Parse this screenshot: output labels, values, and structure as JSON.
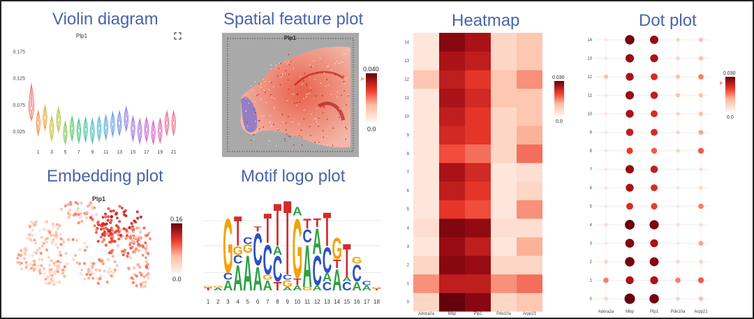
{
  "panels": {
    "violin": {
      "title": "Violin diagram",
      "plot_title": "Plp1",
      "expand_icon": "expand-icon"
    },
    "spatial": {
      "title": "Spatial feature plot",
      "plot_title": "Plp1",
      "scale_max": "0.040",
      "scale_min": "0.0"
    },
    "embedding": {
      "title": "Embedding plot",
      "plot_title": "Plp1",
      "scale_max": "0.16",
      "scale_min": "0.0"
    },
    "motif": {
      "title": "Motif logo plot"
    },
    "heatmap": {
      "title": "Heatmap",
      "scale_max": "0.030",
      "scale_min": "0.0"
    },
    "dotplot": {
      "title": "Dot plot",
      "scale_max": "0.030",
      "scale_min": "0.0"
    }
  },
  "chart_data": [
    {
      "type": "violin",
      "id": "violin",
      "title": "Plp1",
      "y_ticks": [
        "0.175",
        "0.125",
        "0.075",
        "0.025"
      ],
      "y_tick_values": [
        0.175,
        0.125,
        0.075,
        0.025
      ],
      "ylim": [
        0,
        0.19
      ],
      "x_tick_labels": [
        "1",
        "3",
        "5",
        "7",
        "9",
        "11",
        "13",
        "15",
        "17",
        "19",
        "21"
      ],
      "clusters": [
        0,
        1,
        2,
        3,
        4,
        5,
        6,
        7,
        8,
        9,
        10,
        11,
        12,
        13,
        14,
        15,
        16,
        17,
        18,
        19,
        20,
        21
      ],
      "medians": [
        0.068,
        0.04,
        0.05,
        0.03,
        0.046,
        0.02,
        0.03,
        0.026,
        0.028,
        0.025,
        0.03,
        0.032,
        0.038,
        0.04,
        0.048,
        0.03,
        0.025,
        0.028,
        0.022,
        0.026,
        0.04,
        0.04
      ],
      "colors": [
        "#f06a6a",
        "#f08a48",
        "#e6a52e",
        "#cbb82a",
        "#a8c23a",
        "#7cc648",
        "#52c45c",
        "#3ec27a",
        "#36c29c",
        "#38bcb8",
        "#3eb4cc",
        "#48a8dc",
        "#5a98e4",
        "#6e86e8",
        "#8676e6",
        "#9c6ce0",
        "#b064d8",
        "#c25ecc",
        "#d05cbc",
        "#dc5ca8",
        "#e66092",
        "#ee6680"
      ]
    },
    {
      "type": "heatmap",
      "id": "heatmap",
      "x_categories": [
        "Adora2a",
        "Mbp",
        "Plp1",
        "Pde10a",
        "Arpp21"
      ],
      "y_categories": [
        "0",
        "1",
        "2",
        "3",
        "4",
        "5",
        "6",
        "7",
        "8",
        "9",
        "10",
        "11",
        "12",
        "13",
        "14"
      ],
      "values": [
        [
          0.004,
          0.03,
          0.026,
          0.004,
          0.006
        ],
        [
          0.01,
          0.02,
          0.02,
          0.01,
          0.012
        ],
        [
          0.004,
          0.026,
          0.024,
          0.004,
          0.004
        ],
        [
          0.002,
          0.024,
          0.02,
          0.002,
          0.008
        ],
        [
          0.003,
          0.027,
          0.025,
          0.003,
          0.003
        ],
        [
          0.002,
          0.016,
          0.014,
          0.002,
          0.01
        ],
        [
          0.002,
          0.02,
          0.016,
          0.002,
          0.004
        ],
        [
          0.002,
          0.022,
          0.018,
          0.002,
          0.003
        ],
        [
          0.002,
          0.014,
          0.012,
          0.004,
          0.012
        ],
        [
          0.002,
          0.018,
          0.016,
          0.004,
          0.008
        ],
        [
          0.002,
          0.02,
          0.016,
          0.004,
          0.006
        ],
        [
          0.002,
          0.022,
          0.018,
          0.006,
          0.006
        ],
        [
          0.006,
          0.02,
          0.016,
          0.006,
          0.01
        ],
        [
          0.002,
          0.022,
          0.02,
          0.004,
          0.006
        ],
        [
          0.002,
          0.026,
          0.022,
          0.004,
          0.006
        ]
      ],
      "zlim": [
        0,
        0.03
      ]
    },
    {
      "type": "scatter",
      "id": "dotplot",
      "x_categories": [
        "Adora2a",
        "Mbp",
        "Plp1",
        "Pde10a",
        "Arpp21"
      ],
      "y_categories": [
        "0",
        "1",
        "2",
        "3",
        "4",
        "5",
        "6",
        "7",
        "8",
        "9",
        "10",
        "11",
        "12",
        "13",
        "14"
      ],
      "values": [
        [
          0.004,
          0.03,
          0.026,
          0.004,
          0.006
        ],
        [
          0.01,
          0.02,
          0.02,
          0.01,
          0.012
        ],
        [
          0.004,
          0.026,
          0.024,
          0.004,
          0.004
        ],
        [
          0.002,
          0.024,
          0.02,
          0.002,
          0.008
        ],
        [
          0.003,
          0.027,
          0.025,
          0.003,
          0.003
        ],
        [
          0.002,
          0.016,
          0.014,
          0.002,
          0.01
        ],
        [
          0.002,
          0.02,
          0.016,
          0.002,
          0.004
        ],
        [
          0.002,
          0.022,
          0.018,
          0.002,
          0.003
        ],
        [
          0.002,
          0.014,
          0.012,
          0.004,
          0.012
        ],
        [
          0.002,
          0.018,
          0.016,
          0.004,
          0.008
        ],
        [
          0.002,
          0.02,
          0.016,
          0.004,
          0.006
        ],
        [
          0.002,
          0.022,
          0.018,
          0.006,
          0.006
        ],
        [
          0.006,
          0.02,
          0.016,
          0.006,
          0.01
        ],
        [
          0.002,
          0.022,
          0.02,
          0.004,
          0.006
        ],
        [
          0.002,
          0.026,
          0.022,
          0.004,
          0.006
        ]
      ],
      "zlim": [
        0,
        0.03
      ]
    },
    {
      "type": "motif_logo",
      "id": "motif",
      "x_tick_labels": [
        "1",
        "2",
        "3",
        "4",
        "5",
        "6",
        "7",
        "8",
        "9",
        "10",
        "11",
        "12",
        "13",
        "14",
        "15",
        "16",
        "17",
        "18"
      ],
      "positions": [
        [
          {
            "b": "T",
            "h": 0.03
          },
          {
            "b": "G",
            "h": 0.02
          }
        ],
        [
          {
            "b": "A",
            "h": 0.03
          },
          {
            "b": "G",
            "h": 0.02
          }
        ],
        [
          {
            "b": "A",
            "h": 0.12
          },
          {
            "b": "C",
            "h": 0.08
          },
          {
            "b": "G",
            "h": 0.64
          }
        ],
        [
          {
            "b": "A",
            "h": 0.3
          },
          {
            "b": "C",
            "h": 0.1
          },
          {
            "b": "G",
            "h": 0.1
          },
          {
            "b": "T",
            "h": 0.35
          }
        ],
        [
          {
            "b": "A",
            "h": 0.42
          },
          {
            "b": "G",
            "h": 0.1
          },
          {
            "b": "C",
            "h": 0.08
          }
        ],
        [
          {
            "b": "A",
            "h": 0.28
          },
          {
            "b": "C",
            "h": 0.38
          },
          {
            "b": "T",
            "h": 0.06
          }
        ],
        [
          {
            "b": "A",
            "h": 0.12
          },
          {
            "b": "G",
            "h": 0.06
          },
          {
            "b": "C",
            "h": 0.35
          },
          {
            "b": "T",
            "h": 0.35
          }
        ],
        [
          {
            "b": "T",
            "h": 0.1
          },
          {
            "b": "C",
            "h": 0.3
          },
          {
            "b": "A",
            "h": 0.1
          },
          {
            "b": "T",
            "h": 0.5
          }
        ],
        [
          {
            "b": "A",
            "h": 0.04
          },
          {
            "b": "G",
            "h": 0.08
          },
          {
            "b": "C",
            "h": 0.06
          },
          {
            "b": "T",
            "h": 0.88
          }
        ],
        [
          {
            "b": "A",
            "h": 0.06
          },
          {
            "b": "T",
            "h": 0.08
          },
          {
            "b": "G",
            "h": 0.7
          },
          {
            "b": "A",
            "h": 0.1
          }
        ],
        [
          {
            "b": "G",
            "h": 0.04
          },
          {
            "b": "A",
            "h": 0.5
          },
          {
            "b": "C",
            "h": 0.15
          },
          {
            "b": "T",
            "h": 0.12
          }
        ],
        [
          {
            "b": "A",
            "h": 0.06
          },
          {
            "b": "C",
            "h": 0.35
          },
          {
            "b": "A",
            "h": 0.3
          },
          {
            "b": "T",
            "h": 0.1
          }
        ],
        [
          {
            "b": "C",
            "h": 0.1
          },
          {
            "b": "A",
            "h": 0.1
          },
          {
            "b": "C",
            "h": 0.3
          },
          {
            "b": "T",
            "h": 0.4
          }
        ],
        [
          {
            "b": "A",
            "h": 0.25
          },
          {
            "b": "T",
            "h": 0.1
          },
          {
            "b": "G",
            "h": 0.25
          }
        ],
        [
          {
            "b": "C",
            "h": 0.1
          },
          {
            "b": "A",
            "h": 0.05
          },
          {
            "b": "T",
            "h": 0.4
          }
        ],
        [
          {
            "b": "A",
            "h": 0.1
          },
          {
            "b": "C",
            "h": 0.2
          },
          {
            "b": "G",
            "h": 0.08
          }
        ],
        [
          {
            "b": "A",
            "h": 0.06
          },
          {
            "b": "C",
            "h": 0.05
          }
        ],
        [
          {
            "b": "T",
            "h": 0.02
          },
          {
            "b": "G",
            "h": 0.02
          }
        ]
      ]
    },
    {
      "type": "scatter",
      "id": "spatial",
      "title": "Plp1",
      "zlim": [
        0,
        0.04
      ]
    },
    {
      "type": "scatter",
      "id": "embedding",
      "title": "Plp1",
      "zlim": [
        0,
        0.16
      ]
    }
  ],
  "colors": {
    "title_blue": "#4a64a8",
    "heat_low": "#fff1ec",
    "heat_high": "#67000d",
    "base_A": "#2ea043",
    "base_C": "#2b50c7",
    "base_G": "#f0a30a",
    "base_T": "#d22b2b"
  }
}
